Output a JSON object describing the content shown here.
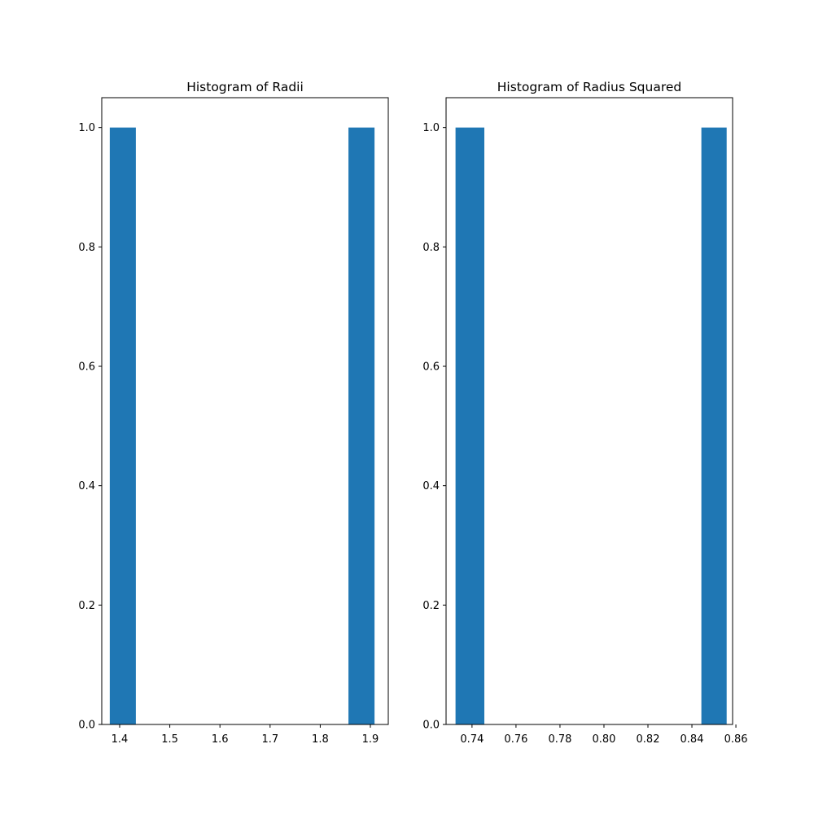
{
  "chart_data": [
    {
      "type": "bar",
      "title": "Histogram of Radii",
      "xlabel": "",
      "ylabel": "",
      "xlim": [
        1.3643,
        1.9357
      ],
      "ylim": [
        0,
        1.05
      ],
      "xticks": [
        1.4,
        1.5,
        1.6,
        1.7,
        1.8,
        1.9
      ],
      "xtick_labels": [
        "1.4",
        "1.5",
        "1.6",
        "1.7",
        "1.8",
        "1.9"
      ],
      "yticks": [
        0.0,
        0.2,
        0.4,
        0.6,
        0.8,
        1.0
      ],
      "ytick_labels": [
        "0.0",
        "0.2",
        "0.4",
        "0.6",
        "0.8",
        "1.0"
      ],
      "bins": [
        {
          "x0": 1.3803,
          "x1": 1.4323,
          "count": 1
        },
        {
          "x0": 1.8563,
          "x1": 1.9083,
          "count": 1
        }
      ],
      "color": "#1f77b4",
      "grid": false
    },
    {
      "type": "bar",
      "title": "Histogram of Radius Squared",
      "xlabel": "",
      "ylabel": "",
      "xlim": [
        0.7282,
        0.8585
      ],
      "ylim": [
        0,
        1.05
      ],
      "xticks": [
        0.74,
        0.76,
        0.78,
        0.8,
        0.82,
        0.84,
        0.86
      ],
      "xtick_labels": [
        "0.74",
        "0.76",
        "0.78",
        "0.80",
        "0.82",
        "0.84",
        "0.86"
      ],
      "yticks": [
        0.0,
        0.2,
        0.4,
        0.6,
        0.8,
        1.0
      ],
      "ytick_labels": [
        "0.0",
        "0.2",
        "0.4",
        "0.6",
        "0.8",
        "1.0"
      ],
      "bins": [
        {
          "x0": 0.7325,
          "x1": 0.7456,
          "count": 1
        },
        {
          "x0": 0.8443,
          "x1": 0.8558,
          "count": 1
        }
      ],
      "color": "#1f77b4",
      "grid": false
    }
  ]
}
